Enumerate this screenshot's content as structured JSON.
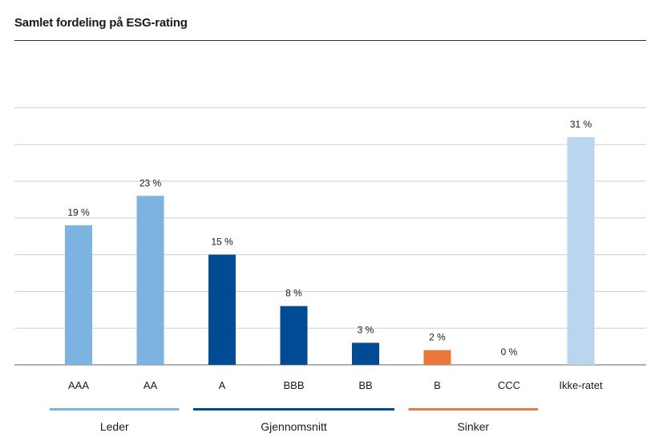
{
  "chart_data": {
    "type": "bar",
    "title": "Samlet fordeling på ESG-rating",
    "xlabel": "",
    "ylabel": "",
    "categories": [
      "AAA",
      "AA",
      "A",
      "BBB",
      "BB",
      "B",
      "CCC",
      "Ikke-ratet"
    ],
    "values": [
      19,
      23,
      15,
      8,
      3,
      2,
      0,
      31
    ],
    "value_labels": [
      "19 %",
      "23 %",
      "15 %",
      "8 %",
      "3 %",
      "2 %",
      "0 %",
      "31 %"
    ],
    "bar_colors": [
      "#7db3e0",
      "#7db3e0",
      "#004b93",
      "#004b93",
      "#004b93",
      "#e8783c",
      "#004b93",
      "#bcd5ef"
    ],
    "ylim": [
      0,
      35
    ],
    "y_tick_step": 5,
    "y_tick_labels_shown": false,
    "grid": true,
    "groups": [
      {
        "name": "Leder",
        "from": 0,
        "to": 1,
        "color": "#7db3e0"
      },
      {
        "name": "Gjennomsnitt",
        "from": 2,
        "to": 4,
        "color": "#004b93"
      },
      {
        "name": "Sinker",
        "from": 5,
        "to": 6,
        "color": "#e8783c"
      }
    ]
  }
}
